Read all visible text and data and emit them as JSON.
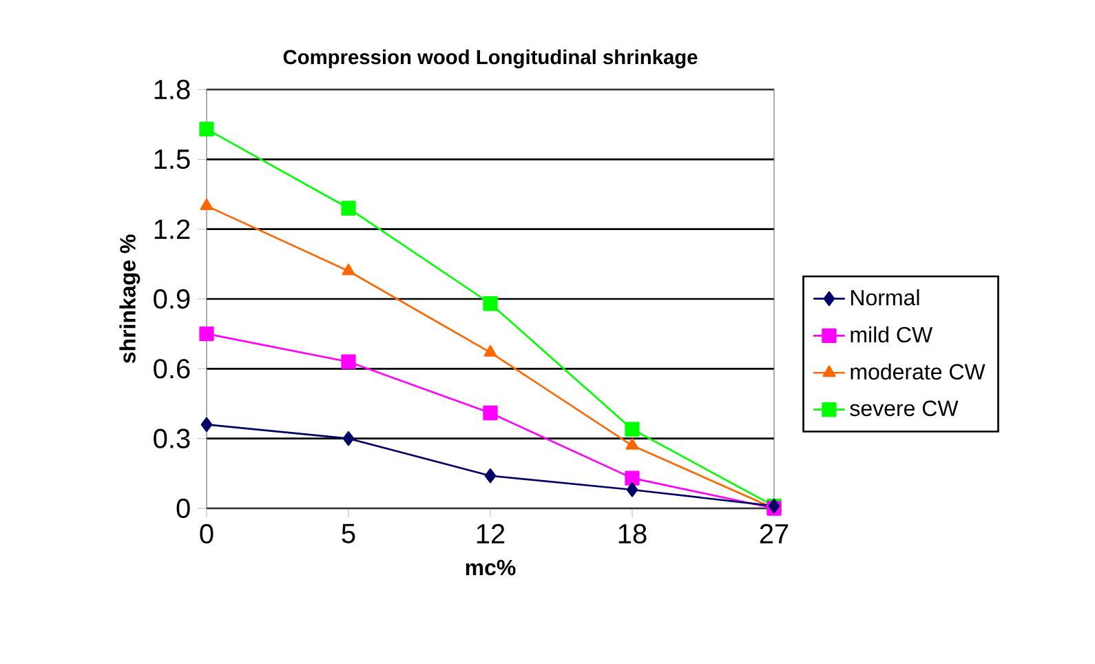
{
  "chart_data": {
    "type": "line",
    "title": "Compression wood Longitudinal shrinkage",
    "xlabel": "mc%",
    "ylabel": "shrinkage %",
    "categories": [
      "0",
      "5",
      "12",
      "18",
      "27"
    ],
    "series": [
      {
        "name": "Normal",
        "color": "#000066",
        "marker": "diamond",
        "values": [
          0.36,
          0.3,
          0.14,
          0.08,
          0.01
        ]
      },
      {
        "name": "mild CW",
        "color": "#ff00ff",
        "marker": "square",
        "values": [
          0.75,
          0.63,
          0.41,
          0.13,
          0
        ]
      },
      {
        "name": "moderate CW",
        "color": "#ff6600",
        "marker": "triangle",
        "values": [
          1.3,
          1.02,
          0.67,
          0.27,
          0
        ]
      },
      {
        "name": "severe CW",
        "color": "#00ff00",
        "marker": "square",
        "values": [
          1.63,
          1.29,
          0.88,
          0.34,
          0.01
        ]
      }
    ],
    "ylim": [
      0,
      1.8
    ],
    "yticks": [
      0,
      0.3,
      0.6,
      0.9,
      1.2,
      1.5,
      1.8
    ],
    "grid": "y",
    "legend": "right",
    "line_style": "solid"
  }
}
